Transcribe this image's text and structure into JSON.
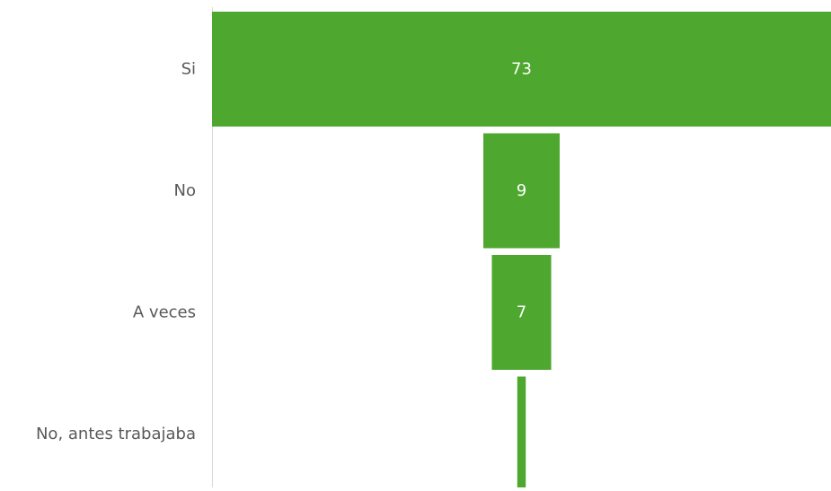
{
  "chart_data": {
    "type": "bar",
    "subtype": "funnel",
    "orientation": "horizontal",
    "categories": [
      "Si",
      "No",
      "A veces",
      "No, antes trabajaba"
    ],
    "values": [
      73,
      9,
      7,
      1
    ],
    "value_labels": [
      "73",
      "9",
      "7",
      ""
    ],
    "title": "",
    "xlabel": "",
    "ylabel": "",
    "xlim": [
      0,
      73
    ],
    "grid": false,
    "legend": "none",
    "colors": {
      "bar": "#4ea72e",
      "axis_line": "#d9d9d9",
      "category_text": "#595959",
      "value_text": "#ffffff"
    }
  }
}
